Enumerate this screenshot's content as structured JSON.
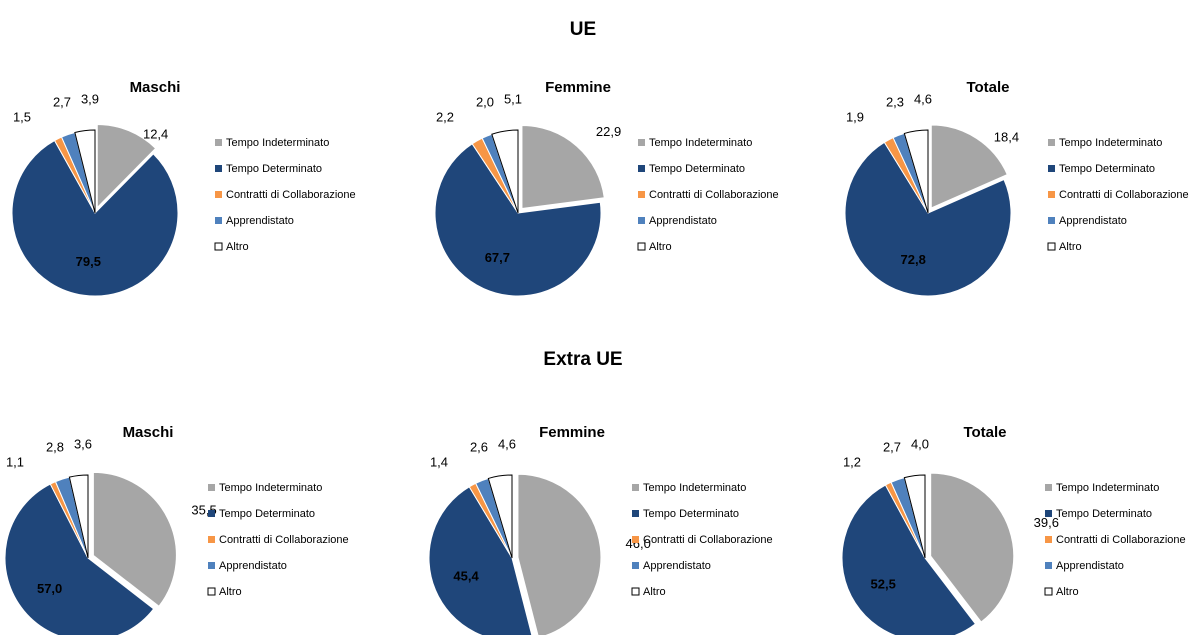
{
  "sections": [
    "UE",
    "Extra UE"
  ],
  "chart_data": [
    {
      "type": "pie",
      "title": "Maschi",
      "categories": [
        "Tempo Indeterminato",
        "Tempo Determinato",
        "Contratti di Collaborazione",
        "Apprendistato",
        "Altro"
      ],
      "values": [
        12.4,
        79.5,
        1.5,
        2.7,
        3.9
      ],
      "value_labels": [
        "12,4",
        "79,5",
        "1,5",
        "2,7",
        "3,9"
      ],
      "colors": [
        "#a6a6a6",
        "#1f467a",
        "#f79646",
        "#4f81bd",
        "#ffffff"
      ]
    },
    {
      "type": "pie",
      "title": "Femmine",
      "categories": [
        "Tempo Indeterminato",
        "Tempo Determinato",
        "Contratti di Collaborazione",
        "Apprendistato",
        "Altro"
      ],
      "values": [
        22.9,
        67.7,
        2.2,
        2.0,
        5.1
      ],
      "value_labels": [
        "22,9",
        "67,7",
        "2,2",
        "2,0",
        "5,1"
      ],
      "colors": [
        "#a6a6a6",
        "#1f467a",
        "#f79646",
        "#4f81bd",
        "#ffffff"
      ]
    },
    {
      "type": "pie",
      "title": "Totale",
      "categories": [
        "Tempo Indeterminato",
        "Tempo Determinato",
        "Contratti di Collaborazione",
        "Apprendistato",
        "Altro"
      ],
      "values": [
        18.4,
        72.8,
        1.9,
        2.3,
        4.6
      ],
      "value_labels": [
        "18,4",
        "72,8",
        "1,9",
        "2,3",
        "4,6"
      ],
      "colors": [
        "#a6a6a6",
        "#1f467a",
        "#f79646",
        "#4f81bd",
        "#ffffff"
      ]
    },
    {
      "type": "pie",
      "title": "Maschi",
      "categories": [
        "Tempo Indeterminato",
        "Tempo Determinato",
        "Contratti di Collaborazione",
        "Apprendistato",
        "Altro"
      ],
      "values": [
        35.5,
        57.0,
        1.1,
        2.8,
        3.6
      ],
      "value_labels": [
        "35,5",
        "57,0",
        "1,1",
        "2,8",
        "3,6"
      ],
      "colors": [
        "#a6a6a6",
        "#1f467a",
        "#f79646",
        "#4f81bd",
        "#ffffff"
      ]
    },
    {
      "type": "pie",
      "title": "Femmine",
      "categories": [
        "Tempo Indeterminato",
        "Tempo Determinato",
        "Contratti di Collaborazione",
        "Apprendistato",
        "Altro"
      ],
      "values": [
        46.0,
        45.4,
        1.4,
        2.6,
        4.6
      ],
      "value_labels": [
        "46,0",
        "45,4",
        "1,4",
        "2,6",
        "4,6"
      ],
      "colors": [
        "#a6a6a6",
        "#1f467a",
        "#f79646",
        "#4f81bd",
        "#ffffff"
      ]
    },
    {
      "type": "pie",
      "title": "Totale",
      "categories": [
        "Tempo Indeterminato",
        "Tempo Determinato",
        "Contratti di Collaborazione",
        "Apprendistato",
        "Altro"
      ],
      "values": [
        39.6,
        52.5,
        1.2,
        2.7,
        4.0
      ],
      "value_labels": [
        "39,6",
        "52,5",
        "1,2",
        "2,7",
        "4,0"
      ],
      "colors": [
        "#a6a6a6",
        "#1f467a",
        "#f79646",
        "#4f81bd",
        "#ffffff"
      ]
    }
  ]
}
